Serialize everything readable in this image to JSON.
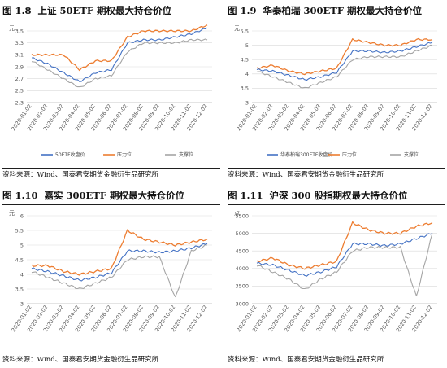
{
  "colors": {
    "close": "#4472C4",
    "resistance": "#ED7D31",
    "support": "#A5A5A5",
    "grid": "#d9d9d9"
  },
  "xcategories": [
    "2020-01-02",
    "2020-02-02",
    "2020-03-02",
    "2020-04-02",
    "2020-05-02",
    "2020-06-02",
    "2020-07-02",
    "2020-08-02",
    "2020-09-02",
    "2020-10-02",
    "2020-11-02",
    "2020-12-02"
  ],
  "panels": [
    {
      "fig_num": "图 1.8",
      "title": "上证 50ETF 期权最大持仓价位",
      "source": "资料来源：Wind、国泰君安期货金融衍生品研究所",
      "chart_data": {
        "type": "line",
        "unit": "元",
        "yticks": [
          "3.5",
          "3.3",
          "3.1",
          "2.9",
          "2.7",
          "2.5",
          "2.3"
        ],
        "ylim": [
          2.3,
          3.5
        ],
        "x": [
          "2020-01-02",
          "2020-02-02",
          "2020-03-02",
          "2020-04-02",
          "2020-05-02",
          "2020-06-02",
          "2020-07-02",
          "2020-08-02",
          "2020-09-02",
          "2020-10-02",
          "2020-11-02",
          "2020-12-02"
        ],
        "legend": [
          "50ETF收盘价",
          "压力位",
          "支撑位"
        ],
        "series": [
          {
            "name": "50ETF收盘价",
            "values": [
              3.05,
              2.95,
              2.8,
              2.65,
              2.8,
              2.85,
              3.3,
              3.35,
              3.35,
              3.4,
              3.45,
              3.55
            ]
          },
          {
            "name": "压力位",
            "values": [
              3.1,
              3.1,
              3.1,
              2.85,
              3.0,
              3.0,
              3.4,
              3.5,
              3.5,
              3.5,
              3.5,
              3.6
            ]
          },
          {
            "name": "支撑位",
            "values": [
              3.0,
              2.85,
              2.7,
              2.55,
              2.7,
              2.75,
              3.15,
              3.3,
              3.3,
              3.3,
              3.35,
              3.35
            ]
          }
        ]
      }
    },
    {
      "fig_num": "图 1.9",
      "title": "华泰柏瑞 300ETF 期权最大持仓价位",
      "source": "资料来源：Wind、国泰君安期货金融衍生品研究所",
      "chart_data": {
        "type": "line",
        "unit": "元",
        "yticks": [
          "5.5",
          "5",
          "4.5",
          "4",
          "3.5",
          "3"
        ],
        "ylim": [
          3,
          5.5
        ],
        "x": [
          "2020-01-02",
          "2020-02-02",
          "2020-03-02",
          "2020-04-02",
          "2020-05-02",
          "2020-06-02",
          "2020-07-02",
          "2020-08-02",
          "2020-09-02",
          "2020-10-02",
          "2020-11-02",
          "2020-12-02"
        ],
        "legend": [
          "华泰柏瑞300ETF收盘价",
          "压力位",
          "支撑位"
        ],
        "series": [
          {
            "name": "华泰柏瑞300ETF收盘价",
            "values": [
              4.15,
              4.1,
              3.95,
              3.8,
              3.9,
              4.05,
              4.8,
              4.8,
              4.75,
              4.8,
              4.95,
              5.1
            ]
          },
          {
            "name": "压力位",
            "values": [
              4.2,
              4.3,
              4.1,
              4.0,
              4.1,
              4.2,
              5.2,
              5.1,
              5.0,
              5.0,
              5.2,
              5.2
            ]
          },
          {
            "name": "支撑位",
            "values": [
              4.1,
              3.9,
              3.7,
              3.5,
              3.7,
              3.9,
              4.5,
              4.6,
              4.6,
              4.6,
              4.8,
              5.0
            ]
          }
        ]
      }
    },
    {
      "fig_num": "图 1.10",
      "title": "嘉实 300ETF 期权最大持仓价位",
      "source": "资料来源：Wind、国泰君安期货金融衍生品研究所",
      "chart_data": {
        "type": "line",
        "unit": "元",
        "yticks": [
          "6",
          "5.5",
          "5",
          "4.5",
          "4",
          "3.5",
          "3"
        ],
        "ylim": [
          3,
          6
        ],
        "x": [
          "2020-01-02",
          "2020-02-02",
          "2020-03-02",
          "2020-04-02",
          "2020-05-02",
          "2020-06-02",
          "2020-07-02",
          "2020-08-02",
          "2020-09-02",
          "2020-10-02",
          "2020-11-02",
          "2020-12-02"
        ],
        "legend": [],
        "series": [
          {
            "name": "",
            "values": [
              4.2,
              4.1,
              3.95,
              3.8,
              3.9,
              4.05,
              4.8,
              4.8,
              4.75,
              4.8,
              4.9,
              5.05
            ]
          },
          {
            "name": "",
            "values": [
              4.3,
              4.3,
              4.1,
              4.0,
              4.1,
              4.2,
              5.5,
              5.2,
              5.1,
              5.0,
              5.1,
              5.2
            ]
          },
          {
            "name": "",
            "values": [
              4.1,
              3.9,
              3.7,
              3.5,
              3.7,
              3.9,
              4.5,
              4.6,
              4.6,
              3.2,
              4.8,
              5.0
            ]
          }
        ]
      }
    },
    {
      "fig_num": "图 1.11",
      "title": "沪深 300 股指期权最大持仓价位",
      "source": "资料来源：Wind、国泰君安期货金融衍生品研究所",
      "chart_data": {
        "type": "line",
        "unit": "点",
        "yticks": [
          "5500",
          "5000",
          "4500",
          "4000",
          "3500",
          "3000"
        ],
        "ylim": [
          3000,
          5500
        ],
        "x": [
          "2020-01-02",
          "2020-02-02",
          "2020-03-02",
          "2020-04-02",
          "2020-05-02",
          "2020-06-02",
          "2020-07-02",
          "2020-08-02",
          "2020-09-02",
          "2020-10-02",
          "2020-11-02",
          "2020-12-02"
        ],
        "legend": [],
        "series": [
          {
            "name": "",
            "values": [
              4150,
              4100,
              3950,
              3800,
              3900,
              4050,
              4700,
              4700,
              4650,
              4700,
              4850,
              5000
            ]
          },
          {
            "name": "",
            "values": [
              4200,
              4300,
              4100,
              4000,
              4100,
              4200,
              5300,
              5100,
              5000,
              5000,
              5200,
              5300
            ]
          },
          {
            "name": "",
            "values": [
              4100,
              3900,
              3700,
              3400,
              3700,
              3900,
              4500,
              4600,
              4600,
              4600,
              3200,
              5000
            ]
          }
        ]
      }
    }
  ]
}
